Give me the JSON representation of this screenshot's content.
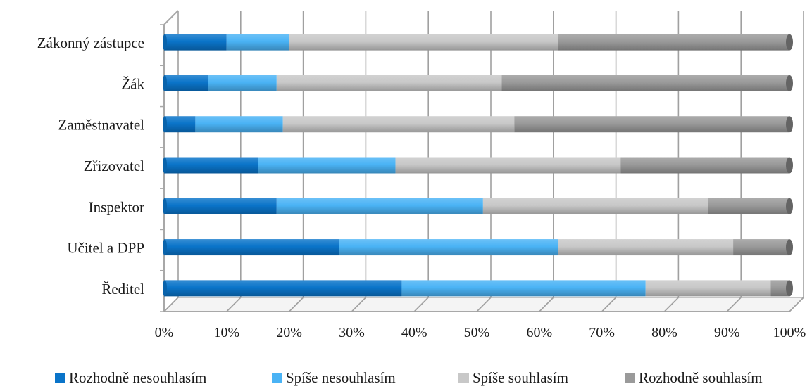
{
  "chart_data": {
    "type": "bar",
    "orientation": "horizontal",
    "stacked": "percent",
    "three_d": true,
    "categories": [
      "Ředitel",
      "Učitel a DPP",
      "Inspektor",
      "Zřizovatel",
      "Zaměstnavatel",
      "Žák",
      "Zákonný zástupce"
    ],
    "series": [
      {
        "name": "Rozhodně nesouhlasím",
        "color": "#0a74c9",
        "values": [
          38,
          28,
          18,
          15,
          5,
          7,
          10
        ]
      },
      {
        "name": "Spíše nesouhlasím",
        "color": "#4ab3f5",
        "values": [
          39,
          35,
          33,
          22,
          14,
          11,
          10
        ]
      },
      {
        "name": "Spíše souhlasím",
        "color": "#c8c8c8",
        "values": [
          20,
          28,
          36,
          36,
          37,
          36,
          43
        ]
      },
      {
        "name": "Rozhodně souhlasím",
        "color": "#9a9a9a",
        "values": [
          3,
          9,
          13,
          27,
          44,
          46,
          37
        ]
      }
    ],
    "x_ticks": [
      "0%",
      "10%",
      "20%",
      "30%",
      "40%",
      "50%",
      "60%",
      "70%",
      "80%",
      "90%",
      "100%"
    ],
    "xlim": [
      0,
      100
    ],
    "grid": true,
    "legend_position": "bottom",
    "title": "",
    "xlabel": "",
    "ylabel": ""
  }
}
